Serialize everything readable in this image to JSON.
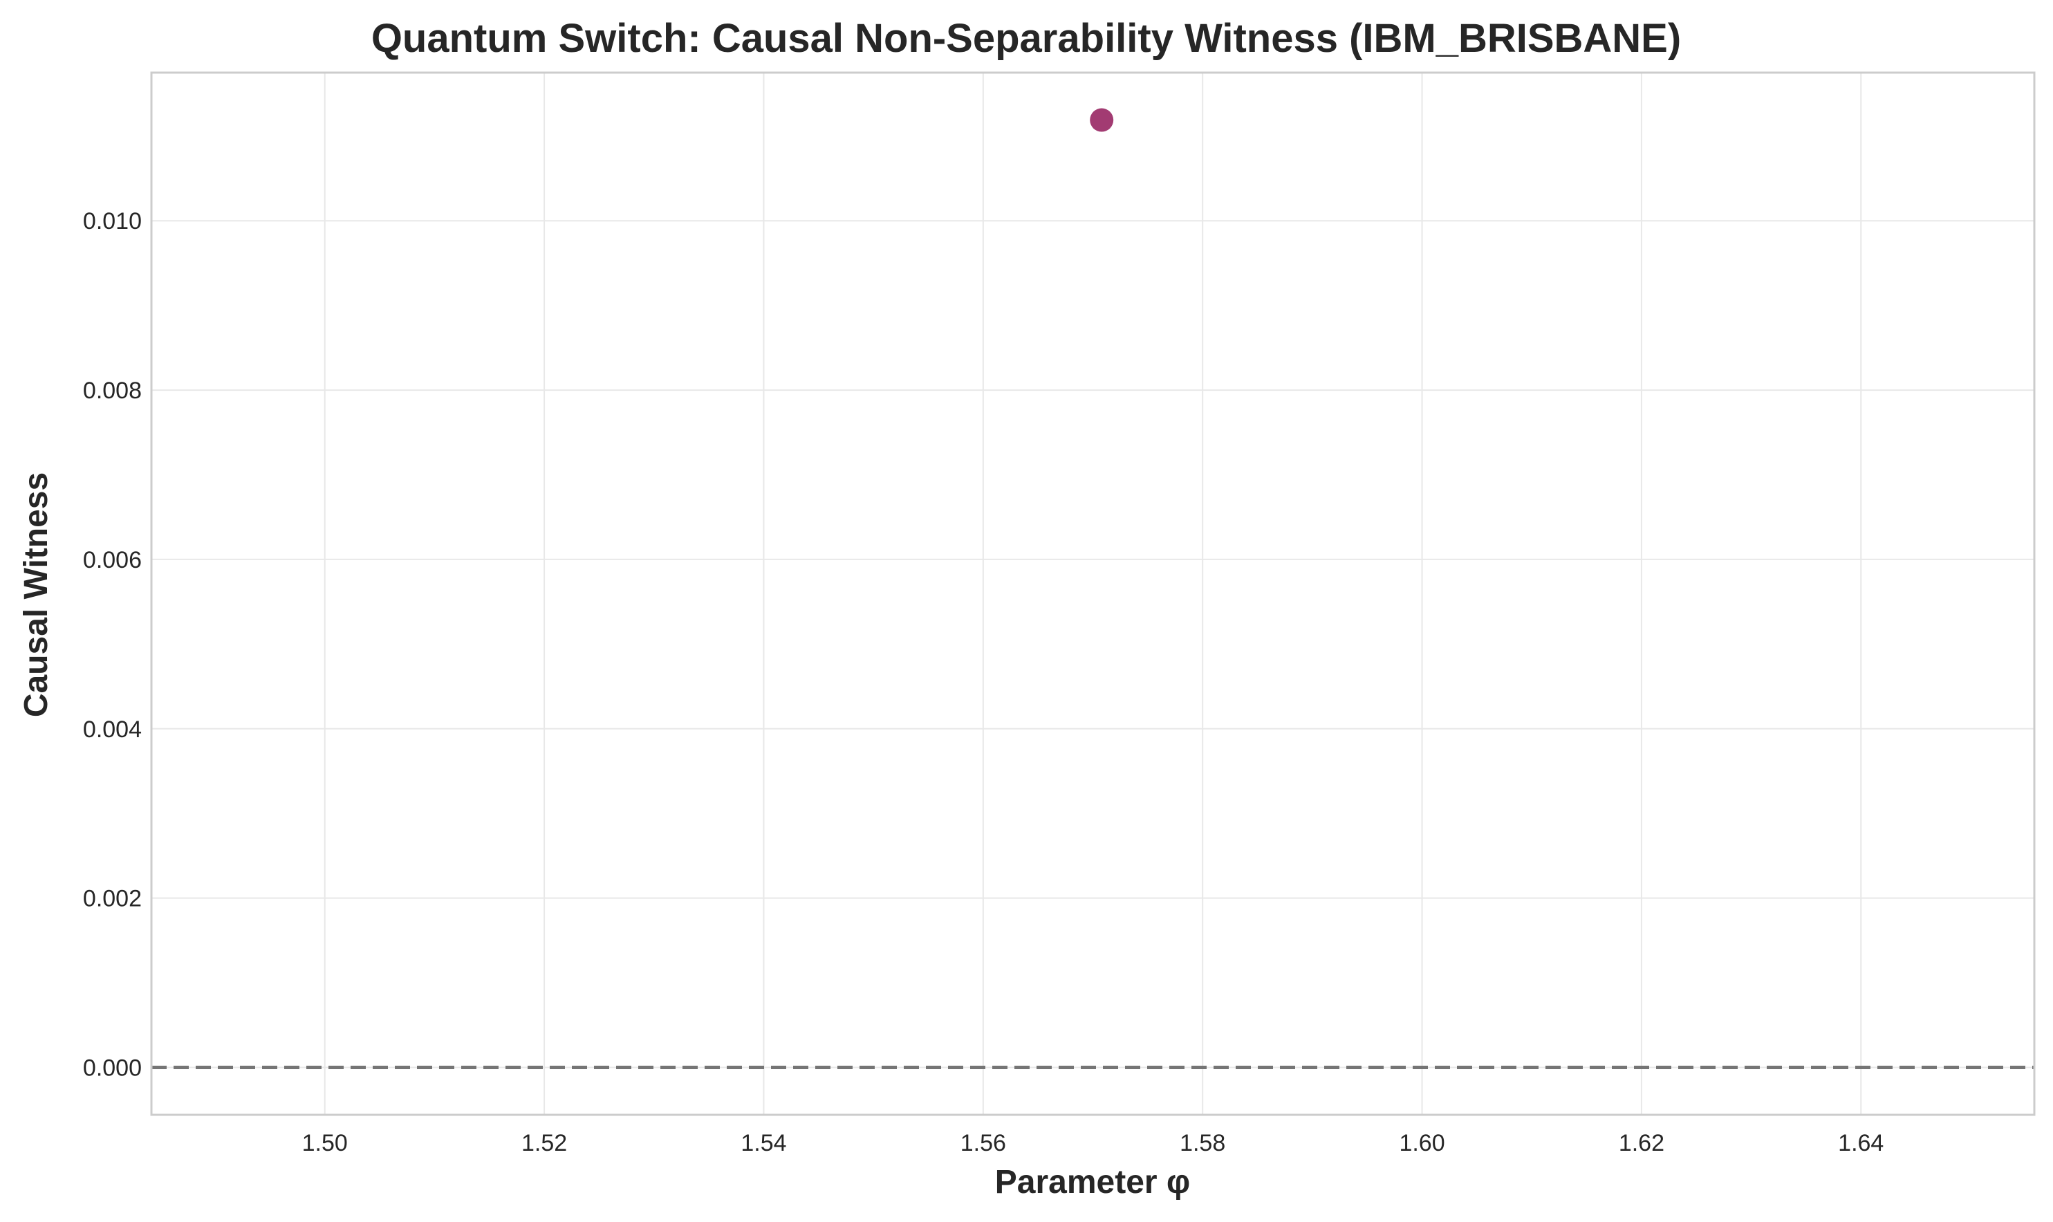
{
  "chart_data": {
    "type": "scatter",
    "title": "Quantum Switch: Causal Non-Separability Witness (IBM_BRISBANE)",
    "xlabel": "Parameter φ",
    "ylabel": "Causal Witness",
    "xlim": [
      1.4842,
      1.6558
    ],
    "ylim": [
      -0.00056,
      0.01175
    ],
    "xticks": [
      "1.50",
      "1.52",
      "1.54",
      "1.56",
      "1.58",
      "1.60",
      "1.62",
      "1.64"
    ],
    "xtick_values": [
      1.5,
      1.52,
      1.54,
      1.56,
      1.58,
      1.6,
      1.62,
      1.64
    ],
    "yticks": [
      "0.000",
      "0.002",
      "0.004",
      "0.006",
      "0.008",
      "0.010"
    ],
    "ytick_values": [
      0.0,
      0.002,
      0.004,
      0.006,
      0.008,
      0.01
    ],
    "grid": true,
    "points": [
      {
        "x": 1.5708,
        "y": 0.01119
      }
    ],
    "reference_line": {
      "y": 0.0,
      "style": "dashed",
      "color": "#757575"
    },
    "marker_color": "#A23B72"
  }
}
